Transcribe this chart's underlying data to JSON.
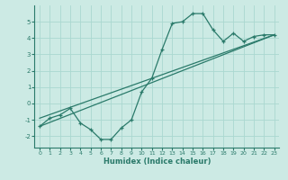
{
  "xlabel": "Humidex (Indice chaleur)",
  "bg_color": "#cceae4",
  "grid_color": "#aad8d0",
  "line_color": "#2a7a6a",
  "xlim": [
    -0.5,
    23.5
  ],
  "ylim": [
    -2.7,
    6.0
  ],
  "xticks": [
    0,
    1,
    2,
    3,
    4,
    5,
    6,
    7,
    8,
    9,
    10,
    11,
    12,
    13,
    14,
    15,
    16,
    17,
    18,
    19,
    20,
    21,
    22,
    23
  ],
  "yticks": [
    -2,
    -1,
    0,
    1,
    2,
    3,
    4,
    5
  ],
  "curve1_x": [
    0,
    1,
    2,
    3,
    4,
    5,
    6,
    7,
    8,
    9,
    10,
    11,
    12,
    13,
    14,
    15,
    16,
    17,
    18,
    19,
    20,
    21,
    22,
    23
  ],
  "curve1_y": [
    -1.4,
    -0.9,
    -0.7,
    -0.3,
    -1.2,
    -1.6,
    -2.2,
    -2.2,
    -1.5,
    -1.0,
    0.7,
    1.55,
    3.3,
    4.9,
    5.0,
    5.5,
    5.5,
    4.5,
    3.8,
    4.3,
    3.8,
    4.1,
    4.2,
    4.2
  ],
  "line2_x": [
    0,
    23
  ],
  "line2_y": [
    -1.4,
    4.2
  ],
  "line3_x": [
    0,
    23
  ],
  "line3_y": [
    -0.9,
    4.2
  ],
  "marker_size": 3.5,
  "linewidth": 0.9,
  "tick_labelsize": 5,
  "xlabel_fontsize": 6
}
